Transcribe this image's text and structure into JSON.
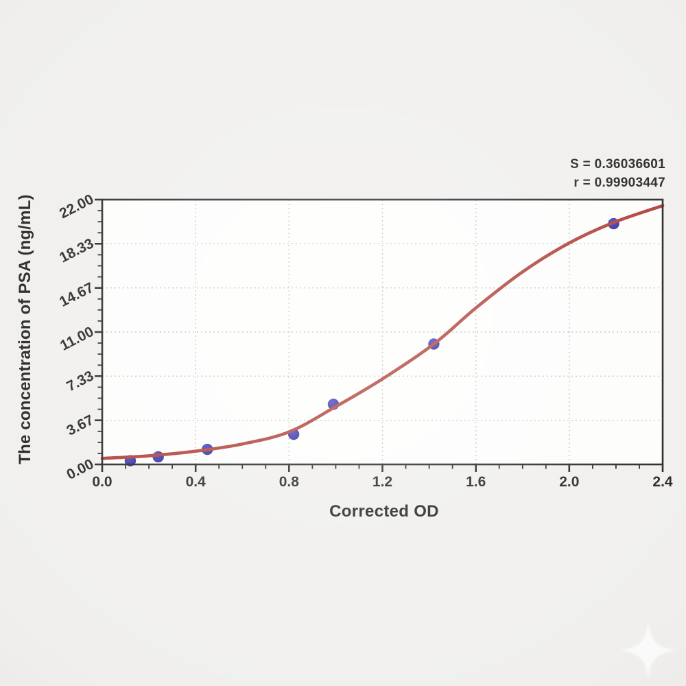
{
  "chart_data": {
    "type": "scatter",
    "title": "",
    "xlabel": "Corrected OD",
    "ylabel": "The concentration of PSA (ng/mL)",
    "xlim": [
      0.0,
      2.4
    ],
    "ylim": [
      0.0,
      22.0
    ],
    "x_tick_values": [
      0.0,
      0.4,
      0.8,
      1.2,
      1.6,
      2.0,
      2.4
    ],
    "x_tick_labels": [
      "0.0",
      "0.4",
      "0.8",
      "1.2",
      "1.6",
      "2.0",
      "2.4"
    ],
    "x_minor_step": 0.1,
    "y_tick_values": [
      0.0,
      3.6667,
      7.3333,
      11.0,
      14.6667,
      18.3333,
      22.0
    ],
    "y_tick_labels": [
      "0.00",
      "3.67",
      "7.33",
      "11.00",
      "14.67",
      "18.33",
      "22.00"
    ],
    "y_minor_divisions_per_major": 4,
    "grid": "dotted gray at major ticks, plot framed in black box",
    "legend_position": "none",
    "series": [
      {
        "name": "standard-points",
        "kind": "scatter",
        "color": "#26239d",
        "points": [
          [
            0.12,
            0.31
          ],
          [
            0.24,
            0.63
          ],
          [
            0.45,
            1.25
          ],
          [
            0.82,
            2.5
          ],
          [
            0.99,
            5.0
          ],
          [
            1.42,
            10.0
          ],
          [
            2.19,
            20.0
          ]
        ]
      },
      {
        "name": "4pl-fit-curve",
        "kind": "line",
        "color": "#a93129",
        "points": [
          [
            0.0,
            0.5
          ],
          [
            0.2,
            0.72
          ],
          [
            0.4,
            1.1
          ],
          [
            0.6,
            1.7
          ],
          [
            0.8,
            2.7
          ],
          [
            1.0,
            4.8
          ],
          [
            1.2,
            7.1
          ],
          [
            1.42,
            10.0
          ],
          [
            1.6,
            13.0
          ],
          [
            1.8,
            16.0
          ],
          [
            2.0,
            18.4
          ],
          [
            2.19,
            20.1
          ],
          [
            2.4,
            21.5
          ]
        ]
      }
    ],
    "annotations": [
      "S = 0.36036601",
      "r = 0.99903447"
    ],
    "colors": {
      "curve": "#a93129",
      "marker": "#26239d",
      "frame": "#161616",
      "grid": "#bcbcbc",
      "plot_background": "#fdfdfc",
      "page_background": "#efeeec",
      "text": "#141414"
    }
  }
}
